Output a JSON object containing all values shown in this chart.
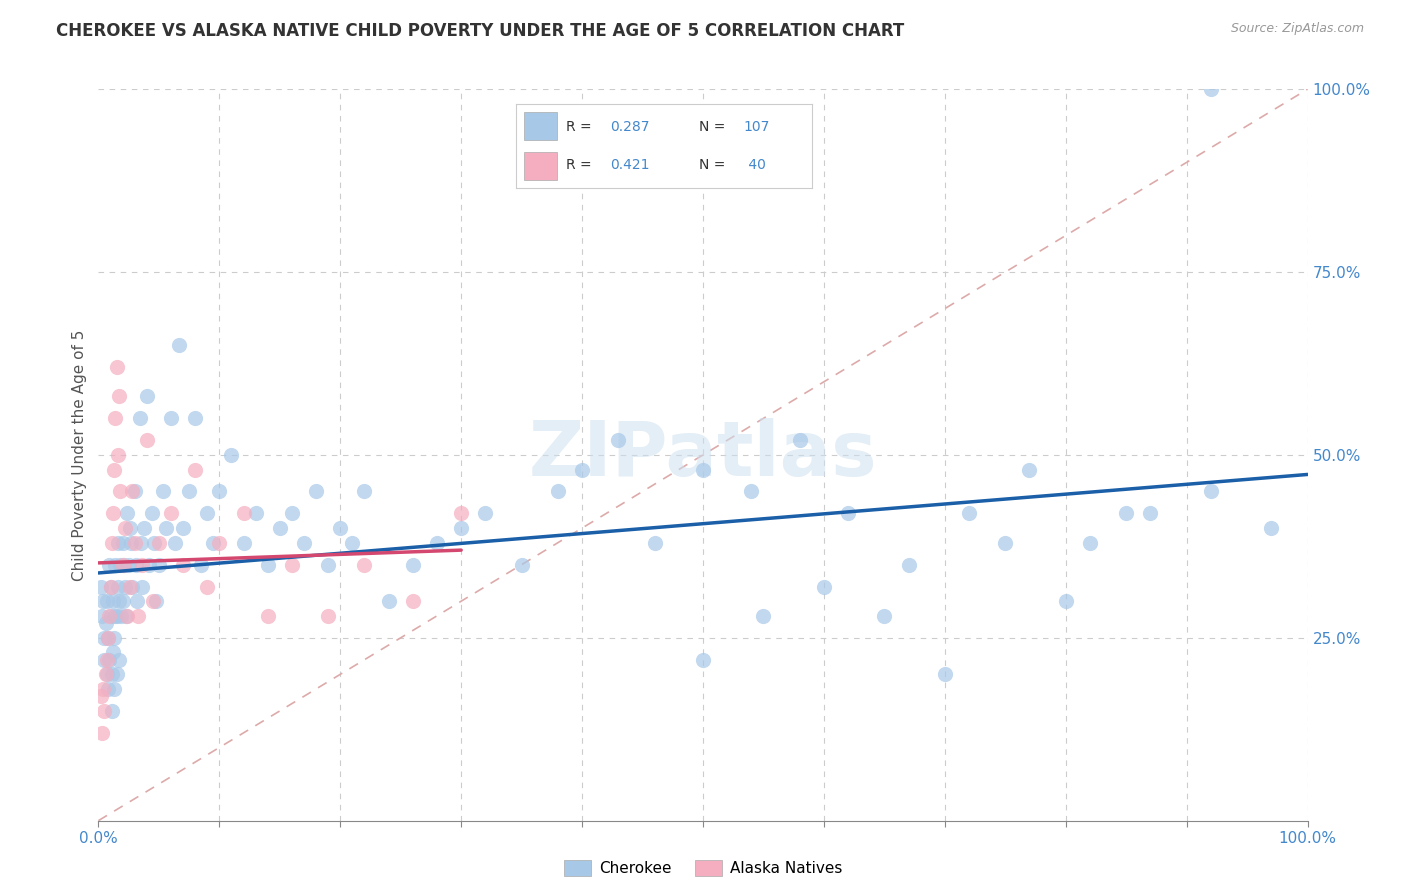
{
  "title": "CHEROKEE VS ALASKA NATIVE CHILD POVERTY UNDER THE AGE OF 5 CORRELATION CHART",
  "source": "Source: ZipAtlas.com",
  "ylabel": "Child Poverty Under the Age of 5",
  "xlim": [
    0,
    1
  ],
  "ylim": [
    0,
    1
  ],
  "cherokee_color": "#a8c8e8",
  "alaska_color": "#f4aec0",
  "cherokee_line_color": "#1a5fa8",
  "alaska_line_color": "#d44870",
  "diagonal_color": "#ddaaaa",
  "background_color": "#ffffff",
  "grid_color": "#cccccc",
  "cherokee_R": 0.287,
  "cherokee_N": 107,
  "alaska_R": 0.421,
  "alaska_N": 40,
  "cherokee_scatter_x": [
    0.002,
    0.003,
    0.004,
    0.005,
    0.005,
    0.006,
    0.007,
    0.007,
    0.008,
    0.008,
    0.009,
    0.009,
    0.01,
    0.01,
    0.011,
    0.011,
    0.012,
    0.012,
    0.013,
    0.013,
    0.014,
    0.014,
    0.015,
    0.015,
    0.016,
    0.016,
    0.017,
    0.017,
    0.018,
    0.019,
    0.02,
    0.02,
    0.021,
    0.022,
    0.023,
    0.024,
    0.025,
    0.026,
    0.027,
    0.028,
    0.03,
    0.031,
    0.032,
    0.034,
    0.035,
    0.036,
    0.038,
    0.04,
    0.042,
    0.044,
    0.046,
    0.048,
    0.05,
    0.053,
    0.056,
    0.06,
    0.063,
    0.067,
    0.07,
    0.075,
    0.08,
    0.085,
    0.09,
    0.095,
    0.1,
    0.11,
    0.12,
    0.13,
    0.14,
    0.15,
    0.16,
    0.17,
    0.18,
    0.19,
    0.2,
    0.21,
    0.22,
    0.24,
    0.26,
    0.28,
    0.3,
    0.32,
    0.35,
    0.38,
    0.4,
    0.43,
    0.46,
    0.5,
    0.54,
    0.58,
    0.62,
    0.67,
    0.72,
    0.77,
    0.82,
    0.87,
    0.92,
    0.97,
    0.5,
    0.55,
    0.6,
    0.65,
    0.7,
    0.75,
    0.8,
    0.85,
    0.92
  ],
  "cherokee_scatter_y": [
    0.32,
    0.28,
    0.3,
    0.25,
    0.22,
    0.27,
    0.2,
    0.3,
    0.18,
    0.25,
    0.22,
    0.35,
    0.28,
    0.32,
    0.15,
    0.2,
    0.23,
    0.3,
    0.18,
    0.25,
    0.28,
    0.35,
    0.2,
    0.28,
    0.32,
    0.38,
    0.22,
    0.3,
    0.35,
    0.28,
    0.3,
    0.38,
    0.35,
    0.32,
    0.28,
    0.42,
    0.35,
    0.4,
    0.38,
    0.32,
    0.45,
    0.35,
    0.3,
    0.55,
    0.38,
    0.32,
    0.4,
    0.58,
    0.35,
    0.42,
    0.38,
    0.3,
    0.35,
    0.45,
    0.4,
    0.55,
    0.38,
    0.65,
    0.4,
    0.45,
    0.55,
    0.35,
    0.42,
    0.38,
    0.45,
    0.5,
    0.38,
    0.42,
    0.35,
    0.4,
    0.42,
    0.38,
    0.45,
    0.35,
    0.4,
    0.38,
    0.45,
    0.3,
    0.35,
    0.38,
    0.4,
    0.42,
    0.35,
    0.45,
    0.48,
    0.52,
    0.38,
    0.48,
    0.45,
    0.52,
    0.42,
    0.35,
    0.42,
    0.48,
    0.38,
    0.42,
    0.45,
    0.4,
    0.22,
    0.28,
    0.32,
    0.28,
    0.2,
    0.38,
    0.3,
    0.42,
    1.0
  ],
  "alaska_scatter_x": [
    0.002,
    0.003,
    0.004,
    0.005,
    0.006,
    0.007,
    0.008,
    0.009,
    0.01,
    0.011,
    0.012,
    0.013,
    0.014,
    0.015,
    0.016,
    0.017,
    0.018,
    0.02,
    0.022,
    0.024,
    0.026,
    0.028,
    0.03,
    0.033,
    0.036,
    0.04,
    0.045,
    0.05,
    0.06,
    0.07,
    0.08,
    0.09,
    0.1,
    0.12,
    0.14,
    0.16,
    0.19,
    0.22,
    0.26,
    0.3
  ],
  "alaska_scatter_y": [
    0.17,
    0.12,
    0.18,
    0.15,
    0.2,
    0.22,
    0.25,
    0.28,
    0.32,
    0.38,
    0.42,
    0.48,
    0.55,
    0.62,
    0.5,
    0.58,
    0.45,
    0.35,
    0.4,
    0.28,
    0.32,
    0.45,
    0.38,
    0.28,
    0.35,
    0.52,
    0.3,
    0.38,
    0.42,
    0.35,
    0.48,
    0.32,
    0.38,
    0.42,
    0.28,
    0.35,
    0.28,
    0.35,
    0.3,
    0.42
  ]
}
